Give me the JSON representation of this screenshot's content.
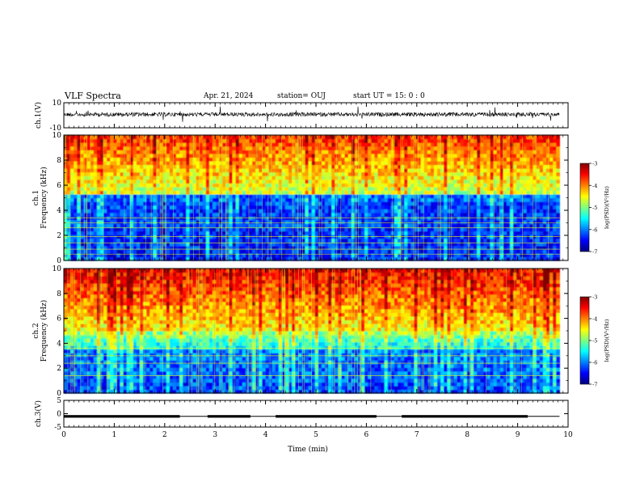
{
  "header": {
    "title": "VLF Spectra",
    "date": "Apr. 21, 2024",
    "station": "station= OUJ",
    "start": "start  UT =   15: 0  : 0"
  },
  "chart_data": [
    {
      "type": "line",
      "panel": "ch1-waveform",
      "ylabel": "ch.1(V)",
      "ylim": [
        -10,
        10
      ],
      "yticks": [
        "10",
        "-10"
      ],
      "xlim": [
        0,
        10
      ],
      "color": "#000000"
    },
    {
      "type": "heatmap",
      "panel": "ch1-spectrogram",
      "ylabel": "ch.1\nFrequency (kHz)",
      "ylim": [
        0,
        10
      ],
      "yticks": [
        "0",
        "2",
        "4",
        "6",
        "8",
        "10"
      ],
      "xlim": [
        0,
        10
      ],
      "data_extent_min": 9.83,
      "colorbar": {
        "label": "log(PSD)(V²/Hz)",
        "range": [
          -7,
          -3
        ],
        "ticks": [
          "-3",
          "-4",
          "-5",
          "-6",
          "-7"
        ]
      }
    },
    {
      "type": "heatmap",
      "panel": "ch2-spectrogram",
      "ylabel": "ch.2\nFrequency (kHz)",
      "ylim": [
        0,
        10
      ],
      "yticks": [
        "0",
        "2",
        "4",
        "6",
        "8",
        "10"
      ],
      "xlim": [
        0,
        10
      ],
      "data_extent_min": 9.83,
      "colorbar": {
        "label": "log(PSD)(V²/Hz)",
        "range": [
          -7,
          -3
        ],
        "ticks": [
          "-3",
          "-4",
          "-5",
          "-6",
          "-7"
        ]
      }
    },
    {
      "type": "line",
      "panel": "ch3-signal",
      "ylabel": "ch.3(V)",
      "ylim": [
        -5,
        5
      ],
      "yticks": [
        "5",
        "0",
        "-5"
      ],
      "xlim": [
        0,
        10
      ],
      "xlabel": "Time (min)",
      "xticks": [
        "0",
        "1",
        "2",
        "3",
        "4",
        "5",
        "6",
        "7",
        "8",
        "9",
        "10"
      ],
      "baseline_V": -1.0,
      "high_segments": [
        [
          0.0,
          2.3
        ],
        [
          2.85,
          3.7
        ],
        [
          4.2,
          6.2
        ],
        [
          6.7,
          7.3
        ],
        [
          7.3,
          9.2
        ]
      ]
    }
  ],
  "colors": {
    "cmap": [
      "#00007f",
      "#0000ff",
      "#007fff",
      "#00ffff",
      "#7fff7f",
      "#ffff00",
      "#ff7f00",
      "#ff0000",
      "#7f0000"
    ],
    "axis": "#000000",
    "background": "#ffffff"
  }
}
